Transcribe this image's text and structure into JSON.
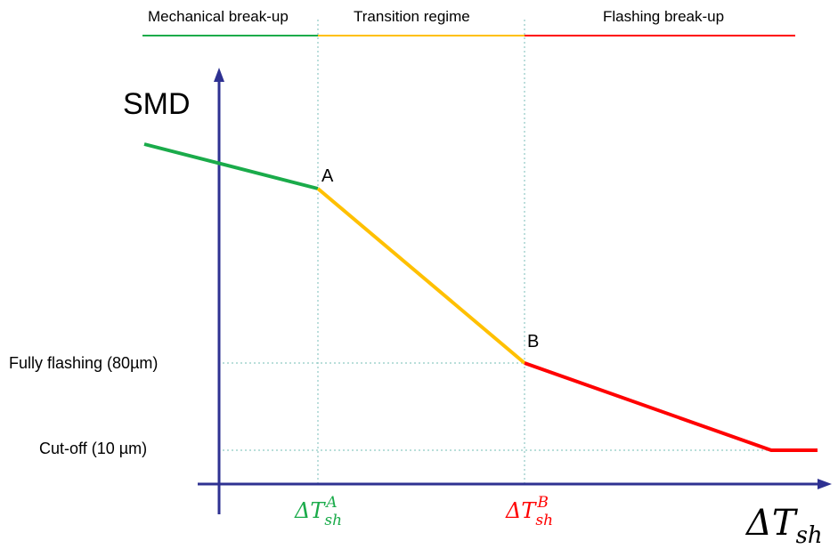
{
  "regimes": [
    {
      "label": "Mechanical break-up",
      "color": "#1aab4a"
    },
    {
      "label": "Transition regime",
      "color": "#ffc000"
    },
    {
      "label": "Flashing break-up",
      "color": "#ff0000"
    }
  ],
  "axis": {
    "y_label": "SMD",
    "x_label_main": "ΔT",
    "x_label_sub": "sh",
    "color": "#2e3192"
  },
  "y_markers": [
    {
      "label": "Fully flashing (80µm)"
    },
    {
      "label": "Cut-off (10 µm)"
    }
  ],
  "x_markers": [
    {
      "main": "ΔT",
      "sub": "sh",
      "sup": "A",
      "color": "#1aab4a"
    },
    {
      "main": "ΔT",
      "sub": "sh",
      "sup": "B",
      "color": "#ff0000"
    }
  ],
  "points": [
    {
      "label": "A"
    },
    {
      "label": "B"
    }
  ]
}
